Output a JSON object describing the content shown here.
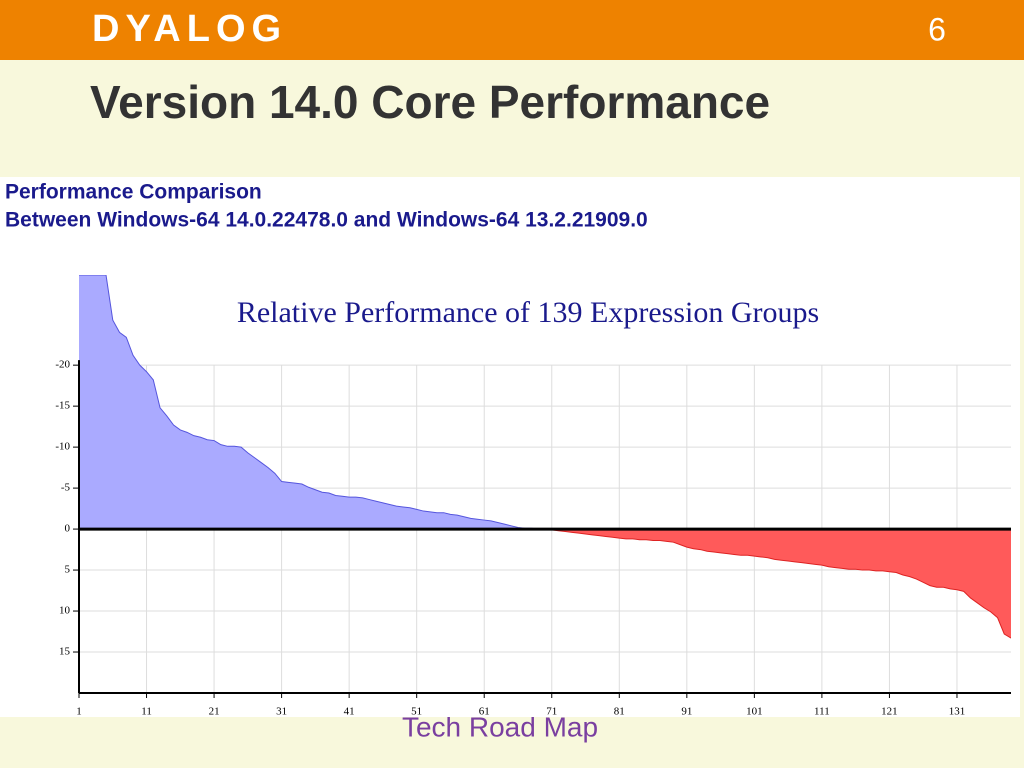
{
  "header": {
    "logo": "DYALOG",
    "page_number": "6"
  },
  "slide_title": "Version 14.0 Core Performance",
  "panel": {
    "heading": "Performance Comparison",
    "subheading": "Between Windows-64 14.0.22478.0 and Windows-64 13.2.21909.0"
  },
  "footer": {
    "text": "Tech Road Map"
  },
  "chart_data": {
    "type": "area",
    "title": "Relative Performance of 139 Expression Groups",
    "x": [
      1,
      2,
      3,
      4,
      5,
      6,
      7,
      8,
      9,
      10,
      11,
      12,
      13,
      14,
      15,
      16,
      17,
      18,
      19,
      20,
      21,
      22,
      23,
      24,
      25,
      26,
      27,
      28,
      29,
      30,
      31,
      32,
      33,
      34,
      35,
      36,
      37,
      38,
      39,
      40,
      41,
      42,
      43,
      44,
      45,
      46,
      47,
      48,
      49,
      50,
      51,
      52,
      53,
      54,
      55,
      56,
      57,
      58,
      59,
      60,
      61,
      62,
      63,
      64,
      65,
      66,
      67,
      68,
      69,
      70,
      71,
      72,
      73,
      74,
      75,
      76,
      77,
      78,
      79,
      80,
      81,
      82,
      83,
      84,
      85,
      86,
      87,
      88,
      89,
      90,
      91,
      92,
      93,
      94,
      95,
      96,
      97,
      98,
      99,
      100,
      101,
      102,
      103,
      104,
      105,
      106,
      107,
      108,
      109,
      110,
      111,
      112,
      113,
      114,
      115,
      116,
      117,
      118,
      119,
      120,
      121,
      122,
      123,
      124,
      125,
      126,
      127,
      128,
      129,
      130,
      131,
      132,
      133,
      134,
      135,
      136,
      137,
      138,
      139
    ],
    "series": [
      {
        "color": "#aaaaff",
        "line_color": "#5555dd",
        "positive_color": "#ff5a5a",
        "positive_line_color": "#dd2222",
        "values": [
          -31,
          -31,
          -31,
          -31,
          -31,
          -25.5,
          -24,
          -23.4,
          -21.2,
          -20,
          -19.2,
          -18.2,
          -14.8,
          -13.8,
          -12.7,
          -12.1,
          -11.8,
          -11.4,
          -11.2,
          -10.9,
          -10.8,
          -10.3,
          -10.1,
          -10.1,
          -10,
          -9.3,
          -8.7,
          -8.1,
          -7.5,
          -6.8,
          -5.8,
          -5.7,
          -5.6,
          -5.5,
          -5.1,
          -4.8,
          -4.5,
          -4.4,
          -4.1,
          -4,
          -3.9,
          -3.9,
          -3.8,
          -3.6,
          -3.4,
          -3.2,
          -3,
          -2.8,
          -2.7,
          -2.6,
          -2.4,
          -2.2,
          -2.1,
          -2,
          -2,
          -1.8,
          -1.7,
          -1.5,
          -1.3,
          -1.2,
          -1.1,
          -1,
          -0.8,
          -0.6,
          -0.4,
          -0.2,
          -0.1,
          -0.1,
          0,
          0,
          0.1,
          0.2,
          0.3,
          0.4,
          0.5,
          0.6,
          0.7,
          0.8,
          0.9,
          1,
          1.1,
          1.2,
          1.2,
          1.3,
          1.3,
          1.4,
          1.4,
          1.5,
          1.6,
          1.9,
          2.2,
          2.4,
          2.5,
          2.7,
          2.8,
          2.9,
          3,
          3.1,
          3.2,
          3.2,
          3.3,
          3.4,
          3.5,
          3.7,
          3.8,
          3.9,
          4,
          4.1,
          4.2,
          4.3,
          4.4,
          4.6,
          4.7,
          4.8,
          4.9,
          4.9,
          5,
          5,
          5.1,
          5.1,
          5.2,
          5.3,
          5.6,
          5.8,
          6.1,
          6.5,
          6.9,
          7.1,
          7.1,
          7.3,
          7.4,
          7.6,
          8.4,
          9,
          9.6,
          10.1,
          10.8,
          12.8,
          13.3
        ]
      }
    ],
    "xlim": [
      1,
      139
    ],
    "xticks": [
      1,
      11,
      21,
      31,
      41,
      51,
      61,
      71,
      81,
      91,
      101,
      111,
      121,
      131
    ],
    "ylim": [
      -31,
      20
    ],
    "yticks": [
      -20,
      -15,
      -10,
      -5,
      0,
      5,
      10,
      15
    ],
    "y_inverted": true,
    "grid": true
  }
}
